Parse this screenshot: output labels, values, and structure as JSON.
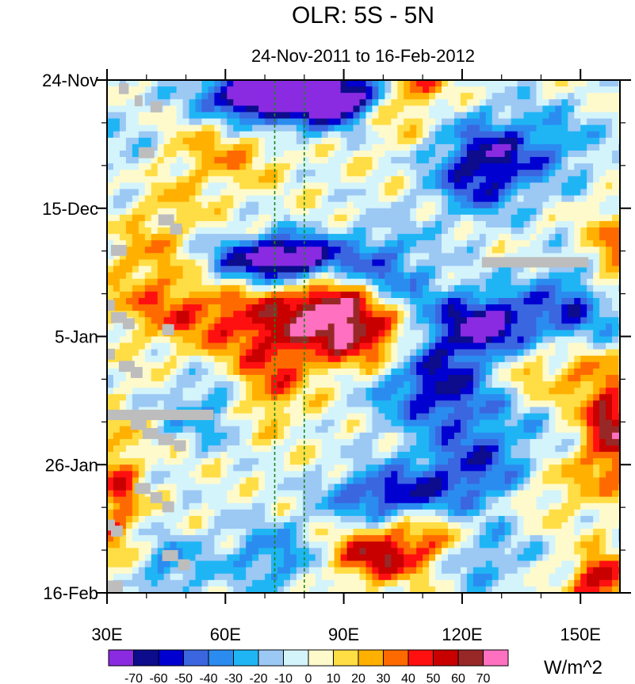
{
  "chart_data": {
    "type": "heatmap",
    "title": "OLR: 5S - 5N",
    "subtitle": "24-Nov-2011 to 16-Feb-2012",
    "x_axis": {
      "range": [
        30,
        160
      ],
      "ticks": [
        30,
        60,
        90,
        120,
        150
      ],
      "tick_labels": [
        "30E",
        "60E",
        "90E",
        "120E",
        "150E"
      ]
    },
    "y_axis": {
      "range_days": [
        0,
        84
      ],
      "ticks": [
        0,
        21,
        42,
        63,
        84
      ],
      "tick_labels": [
        "24-Nov",
        "15-Dec",
        "5-Jan",
        "26-Jan",
        "16-Feb"
      ],
      "direction": "time increasing downward"
    },
    "reference_lines": [
      {
        "lon": 72.5,
        "style": "dashed",
        "color": "#1a8a1a"
      },
      {
        "lon": 80,
        "style": "dashed",
        "color": "#1a8a1a"
      }
    ],
    "colorbar": {
      "units": "W/m^2",
      "levels": [
        -70,
        -60,
        -50,
        -40,
        -30,
        -20,
        -10,
        0,
        10,
        20,
        30,
        40,
        50,
        60,
        70
      ],
      "level_labels": [
        "-70",
        "-60",
        "-50",
        "-40",
        "-30",
        "-20",
        "-10",
        "0",
        "10",
        "20",
        "30",
        "40",
        "50",
        "60",
        "70"
      ],
      "colors": [
        "#8a2be2",
        "#0c0c8c",
        "#0000d0",
        "#3a66e0",
        "#2b8cf0",
        "#1fb5f5",
        "#9cc8f4",
        "#d4f4fb",
        "#fffacc",
        "#ffdd44",
        "#ffb000",
        "#ff6a00",
        "#ff1010",
        "#c80000",
        "#982828",
        "#ff70c0"
      ],
      "missing_color": "#bdbdbd"
    },
    "anomaly_features": [
      {
        "region": "60E-95E",
        "days": [
          0,
          8
        ],
        "value": -75
      },
      {
        "region": "72E-85E",
        "days": [
          26,
          33
        ],
        "value": -70
      },
      {
        "region": "120E-135E",
        "days": [
          40,
          45
        ],
        "value": -60
      },
      {
        "region": "80E-100E",
        "days": [
          35,
          45
        ],
        "value": 50
      },
      {
        "region": "90E-100E",
        "days": [
          74,
          82
        ],
        "value": 40
      },
      {
        "region": "155E-160E",
        "days": [
          52,
          62
        ],
        "value": 50
      }
    ],
    "missing_segments": [
      {
        "lon": [
          30,
          57
        ],
        "day": 54
      },
      {
        "lon": [
          125,
          152
        ],
        "day": 29
      }
    ]
  }
}
